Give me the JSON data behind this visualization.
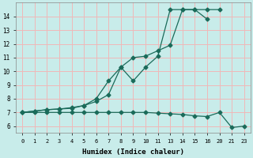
{
  "xlabel": "Humidex (Indice chaleur)",
  "bg_color": "#c8ecea",
  "grid_color": "#f0b8b8",
  "line_color": "#1a6b5a",
  "xtick_labels": [
    "0",
    "1",
    "2",
    "3",
    "4",
    "5",
    "6",
    "7",
    "8",
    "9",
    "10",
    "11",
    "13",
    "14",
    "15",
    "16",
    "20",
    "21",
    "23"
  ],
  "ytick_labels": [
    "6",
    "7",
    "8",
    "9",
    "10",
    "11",
    "12",
    "13",
    "14"
  ],
  "ytick_vals": [
    6,
    7,
    8,
    9,
    10,
    11,
    12,
    13,
    14
  ],
  "ylim": [
    5.5,
    15.0
  ],
  "line1_xi": [
    0,
    1,
    2,
    3,
    4,
    5,
    6,
    7,
    8,
    9,
    10,
    11,
    12,
    13,
    14,
    15
  ],
  "line1_y": [
    7.0,
    7.1,
    7.2,
    7.25,
    7.3,
    7.5,
    7.8,
    8.3,
    10.3,
    9.3,
    10.3,
    11.1,
    14.5,
    14.5,
    14.5,
    13.8
  ],
  "line2_xi": [
    0,
    1,
    2,
    3,
    4,
    5,
    6,
    7,
    8,
    9,
    10,
    11,
    12,
    13,
    14,
    15,
    16
  ],
  "line2_y": [
    7.0,
    7.1,
    7.2,
    7.25,
    7.35,
    7.5,
    8.0,
    9.3,
    10.3,
    11.0,
    11.1,
    11.5,
    11.9,
    14.5,
    14.5,
    14.5,
    14.5
  ],
  "line3_xi": [
    0,
    1,
    2,
    3,
    4,
    5,
    6,
    7,
    8,
    9,
    10,
    11,
    12,
    13,
    14,
    15,
    16,
    17,
    18
  ],
  "line3_y": [
    7.0,
    7.0,
    7.0,
    7.0,
    7.0,
    7.0,
    7.0,
    7.0,
    7.0,
    7.0,
    7.0,
    6.95,
    6.9,
    6.85,
    6.75,
    6.7,
    7.0,
    5.9,
    6.0
  ]
}
